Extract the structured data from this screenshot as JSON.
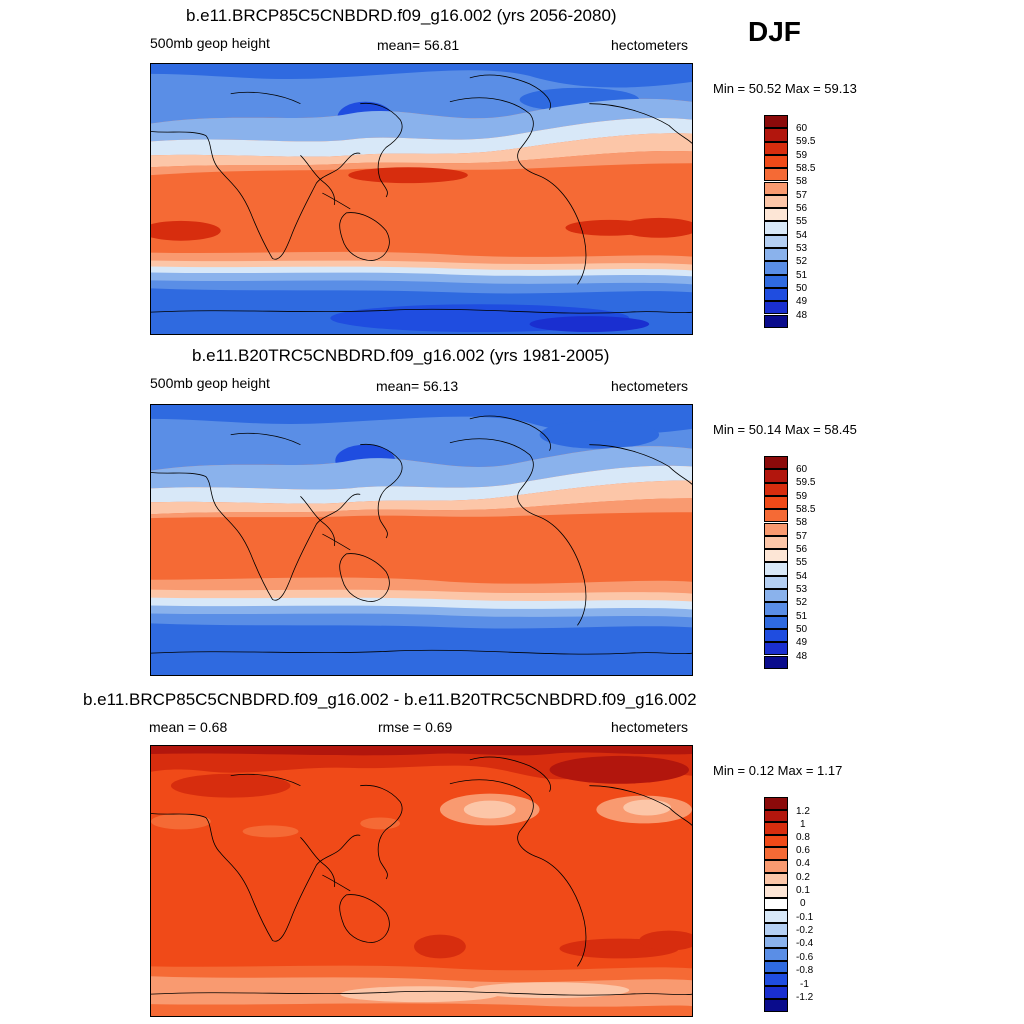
{
  "season": "DJF",
  "panels": [
    {
      "title": "b.e11.BRCP85C5CNBDRD.f09_g16.002 (yrs 2056-2080)",
      "left_label": "500mb geop height",
      "center_label": "mean=  56.81",
      "units": "hectometers",
      "minmax": "Min =  50.52 Max =  59.13",
      "colorbar_colors": [
        "#8b0a0a",
        "#b2160d",
        "#d72d0e",
        "#f04a18",
        "#f56a35",
        "#f99a70",
        "#fcc6a8",
        "#fde6d6",
        "#d8e8f8",
        "#b4cff3",
        "#8ab2ec",
        "#5a8ee6",
        "#2f6ae0",
        "#1f4de0",
        "#1a2fd0",
        "#0a0c8c"
      ],
      "colorbar_labels": [
        "60",
        "59.5",
        "59",
        "58.5",
        "58",
        "57",
        "56",
        "55",
        "54",
        "53",
        "52",
        "51",
        "50",
        "49",
        "48"
      ]
    },
    {
      "title": "b.e11.B20TRC5CNBDRD.f09_g16.002 (yrs 1981-2005)",
      "left_label": "500mb geop height",
      "center_label": "mean=  56.13",
      "units": "hectometers",
      "minmax": "Min =  50.14 Max =  58.45",
      "colorbar_colors": [
        "#8b0a0a",
        "#b2160d",
        "#d72d0e",
        "#f04a18",
        "#f56a35",
        "#f99a70",
        "#fcc6a8",
        "#fde6d6",
        "#d8e8f8",
        "#b4cff3",
        "#8ab2ec",
        "#5a8ee6",
        "#2f6ae0",
        "#1f4de0",
        "#1a2fd0",
        "#0a0c8c"
      ],
      "colorbar_labels": [
        "60",
        "59.5",
        "59",
        "58.5",
        "58",
        "57",
        "56",
        "55",
        "54",
        "53",
        "52",
        "51",
        "50",
        "49",
        "48"
      ]
    },
    {
      "title": "b.e11.BRCP85C5CNBDRD.f09_g16.002 - b.e11.B20TRC5CNBDRD.f09_g16.002",
      "left_label": "mean =   0.68",
      "center_label": "rmse =   0.69",
      "units": "hectometers",
      "minmax": "Min =   0.12 Max =   1.17",
      "colorbar_colors": [
        "#8b0a0a",
        "#b2160d",
        "#d72d0e",
        "#f04a18",
        "#f56a35",
        "#f99a70",
        "#fcc6a8",
        "#fde6d6",
        "#ffffff",
        "#d8e8f8",
        "#b4cff3",
        "#8ab2ec",
        "#5a8ee6",
        "#2f6ae0",
        "#1f4de0",
        "#1a2fd0",
        "#0a0c8c"
      ],
      "colorbar_labels": [
        "1.2",
        "1",
        "0.8",
        "0.6",
        "0.4",
        "0.2",
        "0.1",
        "0",
        "-0.1",
        "-0.2",
        "-0.4",
        "-0.6",
        "-0.8",
        "-1",
        "-1.2"
      ]
    }
  ]
}
